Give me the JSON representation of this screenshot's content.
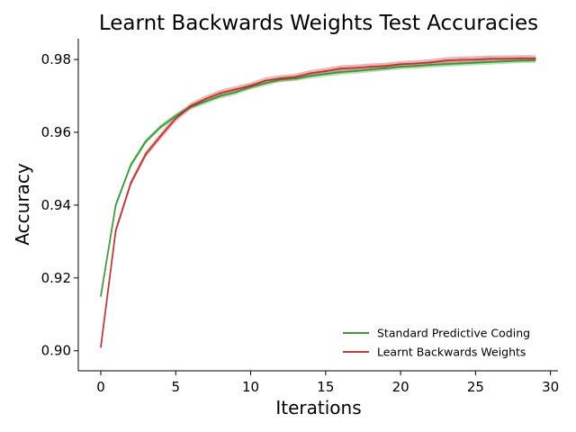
{
  "chart_data": {
    "type": "line",
    "title": "Learnt Backwards Weights Test Accuracies",
    "xlabel": "Iterations",
    "ylabel": "Accuracy",
    "xlim": [
      -1.5,
      30.5
    ],
    "ylim": [
      0.8945,
      0.9857
    ],
    "xticks": [
      0,
      5,
      10,
      15,
      20,
      25,
      30
    ],
    "yticks": [
      0.9,
      0.92,
      0.94,
      0.96,
      0.98
    ],
    "ytick_labels": [
      "0.90",
      "0.92",
      "0.94",
      "0.96",
      "0.98"
    ],
    "grid": false,
    "legend_position": "lower-right",
    "x": [
      0,
      1,
      2,
      3,
      4,
      5,
      6,
      7,
      8,
      9,
      10,
      11,
      12,
      13,
      14,
      15,
      16,
      17,
      18,
      19,
      20,
      21,
      22,
      23,
      24,
      25,
      26,
      27,
      28,
      29
    ],
    "series": [
      {
        "name": "Standard Predictive Coding",
        "color": "#2a8c2a",
        "band_color": "#5cb85c",
        "values": [
          0.915,
          0.94,
          0.951,
          0.9575,
          0.9615,
          0.9645,
          0.967,
          0.9685,
          0.97,
          0.971,
          0.9725,
          0.9735,
          0.9745,
          0.9748,
          0.9755,
          0.976,
          0.9765,
          0.9768,
          0.9772,
          0.9776,
          0.978,
          0.9782,
          0.9785,
          0.9787,
          0.9789,
          0.9791,
          0.9793,
          0.9795,
          0.9797,
          0.9798
        ],
        "band": 0.0007
      },
      {
        "name": "Learnt Backwards Weights",
        "color": "#b22222",
        "band_color": "#d45c5c",
        "values": [
          0.901,
          0.933,
          0.946,
          0.954,
          0.959,
          0.9638,
          0.9672,
          0.9692,
          0.9708,
          0.9718,
          0.9728,
          0.9742,
          0.9748,
          0.9752,
          0.9762,
          0.9768,
          0.9775,
          0.9777,
          0.978,
          0.9782,
          0.9787,
          0.9789,
          0.9792,
          0.9797,
          0.9799,
          0.98,
          0.9802,
          0.9802,
          0.9803,
          0.9803
        ],
        "band": 0.0009
      }
    ]
  }
}
